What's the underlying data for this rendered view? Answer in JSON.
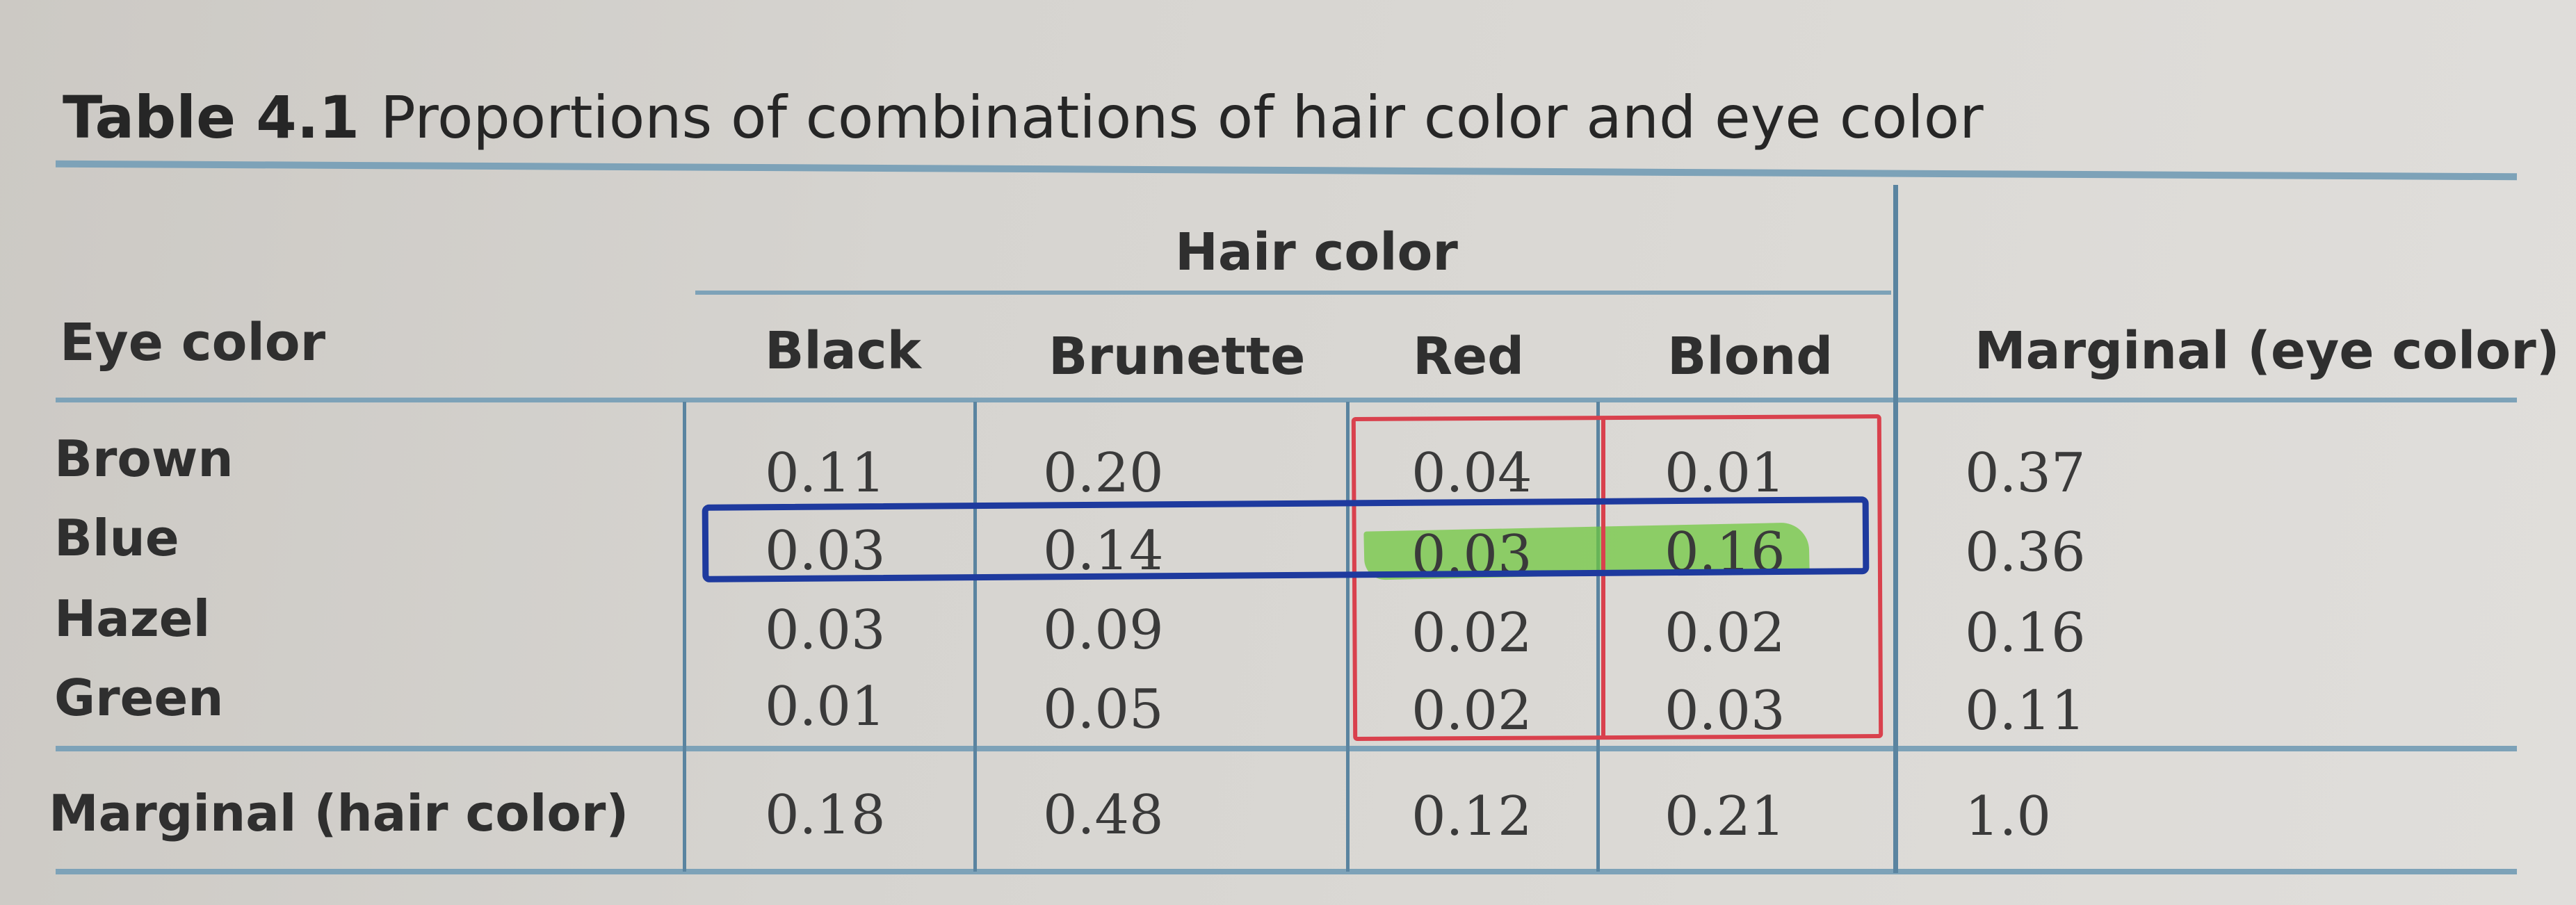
{
  "caption": {
    "number": "Table 4.1",
    "text": "Proportions of combinations of hair color and eye color"
  },
  "headers": {
    "hair_group": "Hair color",
    "eye_color": "Eye color",
    "columns": [
      "Black",
      "Brunette",
      "Red",
      "Blond"
    ],
    "marginal_eye": "Marginal (eye color)"
  },
  "rows": [
    {
      "label": "Brown",
      "values": [
        "0.11",
        "0.20",
        "0.04",
        "0.01"
      ],
      "marginal": "0.37"
    },
    {
      "label": "Blue",
      "values": [
        "0.03",
        "0.14",
        "0.03",
        "0.16"
      ],
      "marginal": "0.36"
    },
    {
      "label": "Hazel",
      "values": [
        "0.03",
        "0.09",
        "0.02",
        "0.02"
      ],
      "marginal": "0.16"
    },
    {
      "label": "Green",
      "values": [
        "0.01",
        "0.05",
        "0.02",
        "0.03"
      ],
      "marginal": "0.11"
    }
  ],
  "footer": {
    "label": "Marginal (hair color)",
    "values": [
      "0.18",
      "0.48",
      "0.12",
      "0.21"
    ],
    "total": "1.0"
  },
  "annotations": {
    "red_box_color": "#d9414d",
    "blue_box_color": "#1e3a9e",
    "green_highlight_color": "#6ec83c"
  }
}
